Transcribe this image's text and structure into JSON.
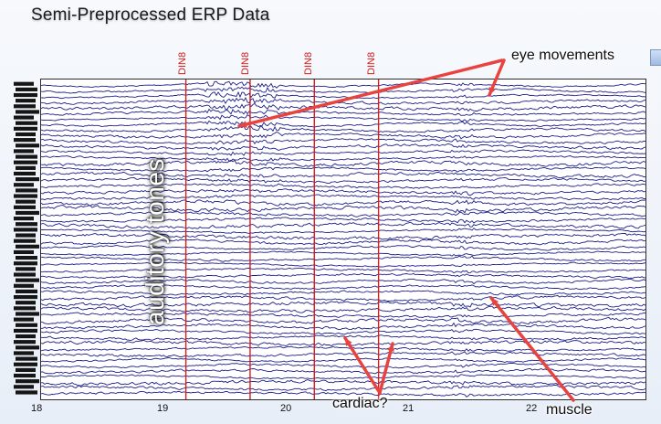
{
  "title": "Semi-Preprocessed ERP Data",
  "x_axis": {
    "ticks": [
      {
        "value": 18,
        "label": "18"
      },
      {
        "value": 19,
        "label": "19"
      },
      {
        "value": 20,
        "label": "20"
      },
      {
        "value": 21,
        "label": "21"
      },
      {
        "value": 22,
        "label": "22"
      }
    ],
    "range": [
      18,
      22.8
    ]
  },
  "events": [
    {
      "time": 19.15,
      "label": "DIN8"
    },
    {
      "time": 19.66,
      "label": "DIN8"
    },
    {
      "time": 20.17,
      "label": "DIN8"
    },
    {
      "time": 20.68,
      "label": "DIN8"
    }
  ],
  "annotations": {
    "eye_movements": "eye movements",
    "auditory_tones": "auditory tones",
    "cardiac": "cardiac?",
    "muscle": "muscle"
  },
  "colors": {
    "trace": "#1c1f8a",
    "event_line": "#d81b1b",
    "arrow": "#e8433f",
    "plot_bg": "#ffffff"
  },
  "channel_count": 56
}
